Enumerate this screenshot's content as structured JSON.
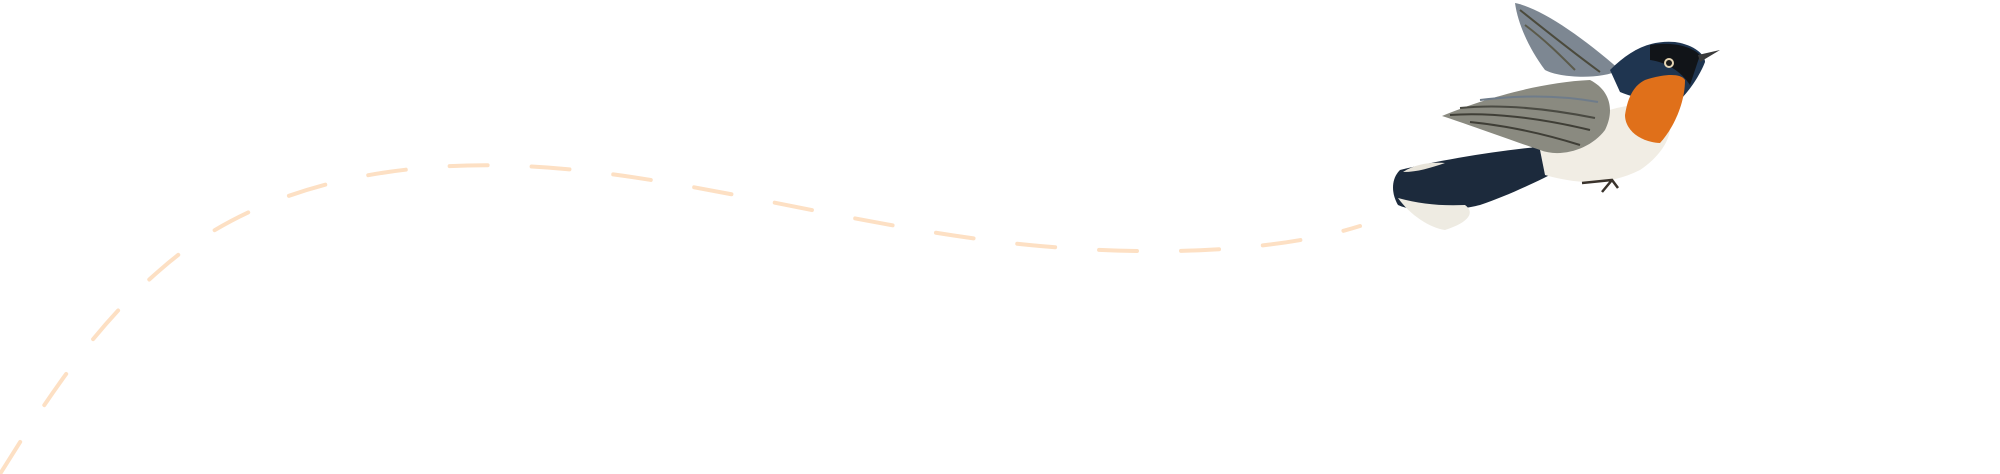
{
  "scene": {
    "subject": "bird-illustration",
    "colors": {
      "background": "#ffffff",
      "flight_path": "#fde0c4",
      "throat": "#e0701a",
      "back": "#1f3550",
      "belly": "#f1ede4",
      "wing": "#8a8a80"
    }
  }
}
